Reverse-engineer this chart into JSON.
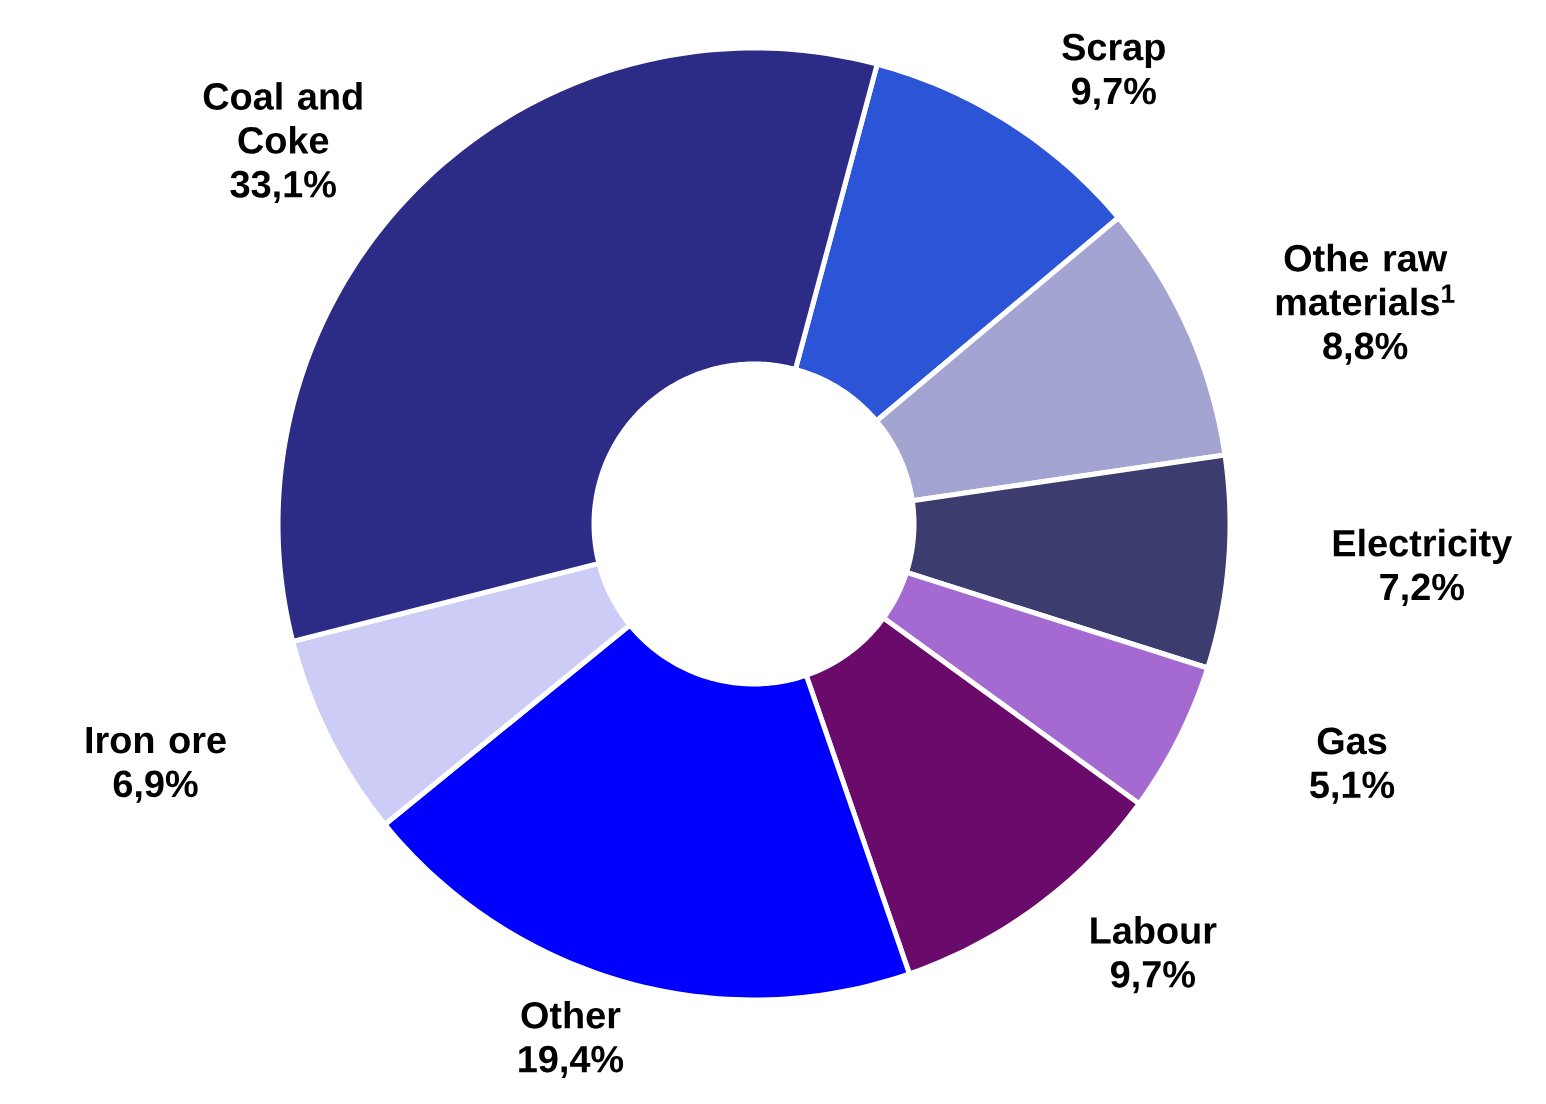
{
  "chart_data": {
    "type": "donut",
    "categories": [
      "Scrap",
      "Othe raw materials$^{1}$",
      "Electricity",
      "Gas",
      "Labour",
      "Other",
      "Iron ore",
      "Coal and Coke"
    ],
    "values": [
      9.7,
      8.8,
      7.2,
      5.1,
      9.7,
      19.4,
      6.9,
      33.1
    ],
    "value_labels": [
      "9,7%",
      "8,8%",
      "7,2%",
      "5,1%",
      "9,7%",
      "19,4%",
      "6,9%",
      "33,1%"
    ],
    "colors": [
      "#2b55d6",
      "#a4a4d2",
      "#3c3c6e",
      "#a46ad2",
      "#6a0a6a",
      "#0000ff",
      "#ccccf6",
      "#2c2c86"
    ]
  }
}
